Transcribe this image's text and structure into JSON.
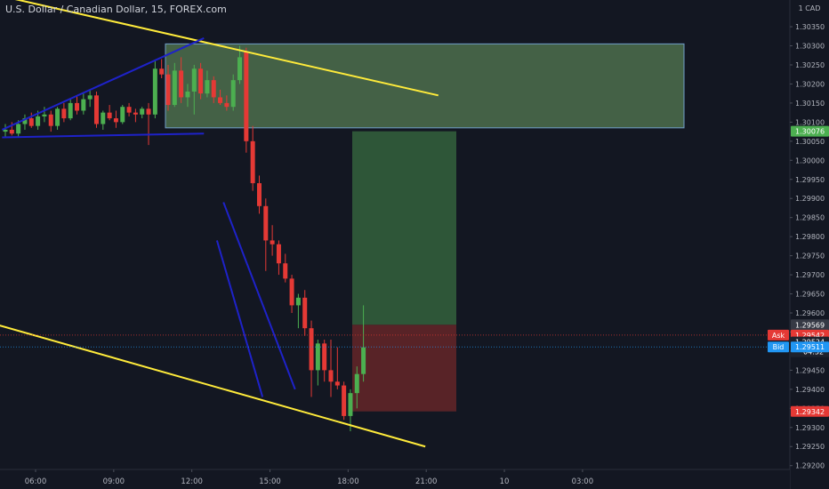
{
  "symbol_title": "U.S. Dollar / Canadian Dollar, 15, FOREX.com",
  "currency_label": "1 CAD",
  "colors": {
    "background": "#131722",
    "up": "#4caf50",
    "down": "#e53935",
    "trendline": "#ffeb3b",
    "channel": "#1e22c9",
    "supply_zone": "#4d6e4c",
    "supply_border": "#6f9ec9",
    "target_zone": "#2f5a3a",
    "stop_zone": "#5c2428",
    "text": "#b2b5be"
  },
  "chart_data": {
    "type": "candlestick",
    "title": "U.S. Dollar / Canadian Dollar, 15, FOREX.com",
    "ylim": [
      1.2919,
      1.3042
    ],
    "y_ticks": [
      "1.30350",
      "1.30300",
      "1.30250",
      "1.30200",
      "1.30150",
      "1.30100",
      "1.30050",
      "1.30000",
      "1.29950",
      "1.29900",
      "1.29850",
      "1.29800",
      "1.29750",
      "1.29700",
      "1.29650",
      "1.29600",
      "1.29550",
      "1.29500",
      "1.29450",
      "1.29400",
      "1.29350",
      "1.29300",
      "1.29250",
      "1.29200"
    ],
    "x_ticks": [
      "06:00",
      "09:00",
      "12:00",
      "15:00",
      "18:00",
      "21:00",
      "10",
      "03:00"
    ],
    "candles": [
      {
        "o": 1.30075,
        "h": 1.30095,
        "l": 1.3006,
        "c": 1.3008
      },
      {
        "o": 1.3008,
        "h": 1.301,
        "l": 1.30065,
        "c": 1.3007
      },
      {
        "o": 1.3007,
        "h": 1.30105,
        "l": 1.3006,
        "c": 1.30095
      },
      {
        "o": 1.30095,
        "h": 1.3012,
        "l": 1.3008,
        "c": 1.3011
      },
      {
        "o": 1.3011,
        "h": 1.30125,
        "l": 1.30085,
        "c": 1.3009
      },
      {
        "o": 1.3009,
        "h": 1.3013,
        "l": 1.3008,
        "c": 1.30115
      },
      {
        "o": 1.30115,
        "h": 1.3014,
        "l": 1.301,
        "c": 1.3012
      },
      {
        "o": 1.3012,
        "h": 1.3013,
        "l": 1.30075,
        "c": 1.3009
      },
      {
        "o": 1.3009,
        "h": 1.3014,
        "l": 1.3008,
        "c": 1.30135
      },
      {
        "o": 1.30135,
        "h": 1.3015,
        "l": 1.301,
        "c": 1.3011
      },
      {
        "o": 1.3011,
        "h": 1.3016,
        "l": 1.30105,
        "c": 1.3015
      },
      {
        "o": 1.3015,
        "h": 1.3017,
        "l": 1.3012,
        "c": 1.3013
      },
      {
        "o": 1.3013,
        "h": 1.30175,
        "l": 1.3012,
        "c": 1.3016
      },
      {
        "o": 1.3016,
        "h": 1.30185,
        "l": 1.3014,
        "c": 1.3017
      },
      {
        "o": 1.3017,
        "h": 1.3018,
        "l": 1.30085,
        "c": 1.30095
      },
      {
        "o": 1.30095,
        "h": 1.3013,
        "l": 1.3008,
        "c": 1.30125
      },
      {
        "o": 1.30125,
        "h": 1.30145,
        "l": 1.30105,
        "c": 1.3011
      },
      {
        "o": 1.3011,
        "h": 1.3013,
        "l": 1.30085,
        "c": 1.301
      },
      {
        "o": 1.301,
        "h": 1.30145,
        "l": 1.30095,
        "c": 1.3014
      },
      {
        "o": 1.3014,
        "h": 1.3015,
        "l": 1.30115,
        "c": 1.30125
      },
      {
        "o": 1.30125,
        "h": 1.30135,
        "l": 1.301,
        "c": 1.3012
      },
      {
        "o": 1.3012,
        "h": 1.3014,
        "l": 1.3011,
        "c": 1.30135
      },
      {
        "o": 1.30135,
        "h": 1.3015,
        "l": 1.3004,
        "c": 1.3012
      },
      {
        "o": 1.3012,
        "h": 1.3026,
        "l": 1.3011,
        "c": 1.3024
      },
      {
        "o": 1.3024,
        "h": 1.30265,
        "l": 1.30215,
        "c": 1.30225
      },
      {
        "o": 1.30225,
        "h": 1.3025,
        "l": 1.3013,
        "c": 1.30145
      },
      {
        "o": 1.30145,
        "h": 1.30255,
        "l": 1.3014,
        "c": 1.30235
      },
      {
        "o": 1.30235,
        "h": 1.3027,
        "l": 1.3015,
        "c": 1.30165
      },
      {
        "o": 1.30165,
        "h": 1.302,
        "l": 1.3014,
        "c": 1.3018
      },
      {
        "o": 1.3018,
        "h": 1.3025,
        "l": 1.3012,
        "c": 1.3024
      },
      {
        "o": 1.3024,
        "h": 1.30255,
        "l": 1.3016,
        "c": 1.30175
      },
      {
        "o": 1.30175,
        "h": 1.30235,
        "l": 1.30165,
        "c": 1.3021
      },
      {
        "o": 1.3021,
        "h": 1.3022,
        "l": 1.3015,
        "c": 1.30165
      },
      {
        "o": 1.30165,
        "h": 1.30185,
        "l": 1.30145,
        "c": 1.3015
      },
      {
        "o": 1.3015,
        "h": 1.3017,
        "l": 1.3013,
        "c": 1.3014
      },
      {
        "o": 1.3014,
        "h": 1.30225,
        "l": 1.3013,
        "c": 1.3021
      },
      {
        "o": 1.3021,
        "h": 1.303,
        "l": 1.302,
        "c": 1.3027
      },
      {
        "o": 1.30285,
        "h": 1.30295,
        "l": 1.3002,
        "c": 1.3005
      },
      {
        "o": 1.3005,
        "h": 1.3009,
        "l": 1.2992,
        "c": 1.2994
      },
      {
        "o": 1.2994,
        "h": 1.2996,
        "l": 1.2986,
        "c": 1.2988
      },
      {
        "o": 1.2988,
        "h": 1.299,
        "l": 1.2971,
        "c": 1.2979
      },
      {
        "o": 1.2979,
        "h": 1.2983,
        "l": 1.2975,
        "c": 1.2978
      },
      {
        "o": 1.2978,
        "h": 1.2979,
        "l": 1.297,
        "c": 1.2973
      },
      {
        "o": 1.2973,
        "h": 1.29755,
        "l": 1.2968,
        "c": 1.2969
      },
      {
        "o": 1.2969,
        "h": 1.297,
        "l": 1.296,
        "c": 1.2962
      },
      {
        "o": 1.2962,
        "h": 1.2965,
        "l": 1.2956,
        "c": 1.2964
      },
      {
        "o": 1.2964,
        "h": 1.2966,
        "l": 1.2954,
        "c": 1.2956
      },
      {
        "o": 1.2956,
        "h": 1.2958,
        "l": 1.2938,
        "c": 1.2945
      },
      {
        "o": 1.2945,
        "h": 1.2953,
        "l": 1.2941,
        "c": 1.2952
      },
      {
        "o": 1.2952,
        "h": 1.2953,
        "l": 1.2942,
        "c": 1.2945
      },
      {
        "o": 1.2945,
        "h": 1.2953,
        "l": 1.2938,
        "c": 1.2942
      },
      {
        "o": 1.2942,
        "h": 1.2951,
        "l": 1.294,
        "c": 1.2941
      },
      {
        "o": 1.2941,
        "h": 1.2942,
        "l": 1.2932,
        "c": 1.2933
      },
      {
        "o": 1.2933,
        "h": 1.294,
        "l": 1.2929,
        "c": 1.2939
      },
      {
        "o": 1.2939,
        "h": 1.2946,
        "l": 1.2935,
        "c": 1.2944
      },
      {
        "o": 1.2944,
        "h": 1.2962,
        "l": 1.2942,
        "c": 1.2951
      }
    ],
    "price_tags": [
      {
        "label": "",
        "value": "1.30076",
        "price": 1.30076,
        "color": "#4caf50"
      },
      {
        "label": "",
        "value": "1.29569",
        "price": 1.29569,
        "color": "#363a45"
      },
      {
        "label": "Ask",
        "value": "1.29542",
        "price": 1.29542,
        "color": "#e53935"
      },
      {
        "label": "",
        "value": "1.29524",
        "price": 1.29524,
        "color": "#1e222d",
        "sub": "04:32"
      },
      {
        "label": "Bid",
        "value": "1.29511",
        "price": 1.29511,
        "color": "#2196f3"
      },
      {
        "label": "",
        "value": "1.29342",
        "price": 1.29342,
        "color": "#e53935"
      }
    ],
    "supply_zone": {
      "top": 1.30305,
      "bottom": 1.30085
    },
    "target_zone": {
      "top": 1.30076,
      "bottom": 1.29569
    },
    "stop_zone": {
      "top": 1.29569,
      "bottom": 1.29342
    },
    "trendlines": [
      {
        "from": {
          "x": -0.5,
          "p": 1.3043
        },
        "to": {
          "x": 66.5,
          "p": 1.3017
        },
        "color": "#ffeb3b"
      },
      {
        "from": {
          "x": -3.5,
          "p": 1.2958
        },
        "to": {
          "x": 64.5,
          "p": 1.2925
        },
        "color": "#ffeb3b"
      },
      {
        "from": {
          "x": -0.5,
          "p": 1.3008
        },
        "to": {
          "x": 30.5,
          "p": 1.3032
        },
        "color": "#1e22c9"
      },
      {
        "from": {
          "x": -0.5,
          "p": 1.3006
        },
        "to": {
          "x": 30.5,
          "p": 1.3007
        },
        "color": "#1e22c9"
      },
      {
        "from": {
          "x": 33.5,
          "p": 1.2989
        },
        "to": {
          "x": 44.5,
          "p": 1.294
        },
        "color": "#1e22c9"
      },
      {
        "from": {
          "x": 32.5,
          "p": 1.2979
        },
        "to": {
          "x": 39.5,
          "p": 1.2938
        },
        "color": "#1e22c9"
      }
    ]
  }
}
